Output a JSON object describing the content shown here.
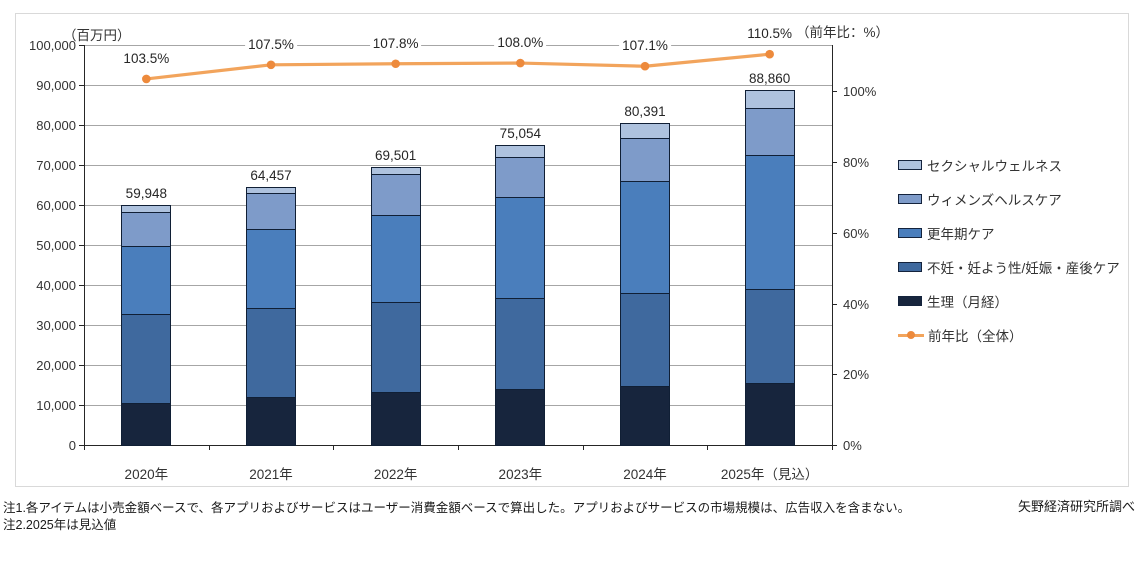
{
  "footer": {
    "note1": "注1.各アイテムは小売金額ベースで、各アプリおよびサービスはユーザー消費金額ベースで算出した。アプリおよびサービスの市場規模は、広告収入を含まない。",
    "note2": "注2.2025年は見込値",
    "source": "矢野経済研究所調べ"
  },
  "legend": {
    "items": [
      {
        "label": "セクシャルウェルネス",
        "type": "box",
        "color": "#AEC2DE"
      },
      {
        "label": "ウィメンズヘルスケア",
        "type": "box",
        "color": "#7E9BC9"
      },
      {
        "label": "更年期ケア",
        "type": "box",
        "color": "#4A7EBC"
      },
      {
        "label": "不妊・妊よう性/妊娠・産後ケア",
        "type": "box",
        "color": "#3F699E"
      },
      {
        "label": "生理（月経）",
        "type": "box",
        "color": "#17253D"
      },
      {
        "label": "前年比（全体）",
        "type": "line",
        "color": "#F2A45C",
        "marker_color": "#ED8A3C"
      }
    ]
  },
  "colors": {
    "gridline": "#A6A6A6",
    "axis": "#262626",
    "frame_border": "#D9D9D9",
    "bar_border": "#101F35",
    "line": "#F2A45C",
    "line_marker": "#ED8A3C"
  },
  "chart_data": {
    "type": "bar",
    "subtype": "stacked-column-with-line",
    "categories": [
      "2020年",
      "2021年",
      "2022年",
      "2023年",
      "2024年",
      "2025年（見込）"
    ],
    "series": [
      {
        "name": "生理（月経）",
        "color": "#17253D",
        "values": [
          10450,
          12100,
          13200,
          13900,
          14800,
          15600
        ]
      },
      {
        "name": "不妊・妊よう性/妊娠・産後ケア",
        "color": "#3F699E",
        "values": [
          22230,
          22200,
          22500,
          22900,
          23300,
          23300
        ]
      },
      {
        "name": "更年期ケア",
        "color": "#4A7EBC",
        "values": [
          17160,
          19600,
          21800,
          25300,
          28000,
          33500
        ]
      },
      {
        "name": "ウィメンズヘルスケア",
        "color": "#7E9BC9",
        "values": [
          8300,
          9100,
          10200,
          9800,
          10600,
          11900
        ]
      },
      {
        "name": "セクシャルウェルネス",
        "color": "#AEC2DE",
        "values": [
          1808,
          1457,
          1801,
          3154,
          3691,
          4560
        ]
      }
    ],
    "totals": [
      59948,
      64457,
      69501,
      75054,
      80391,
      88860
    ],
    "total_labels": [
      "59,948",
      "64,457",
      "69,501",
      "75,054",
      "80,391",
      "88,860"
    ],
    "line_series": {
      "name": "前年比（全体）",
      "values": [
        103.5,
        107.5,
        107.8,
        108.0,
        107.1,
        110.5
      ],
      "labels": [
        "103.5%",
        "107.5%",
        "107.8%",
        "108.0%",
        "107.1%",
        "110.5%"
      ]
    },
    "left_axis": {
      "title": "（百万円）",
      "min": 0,
      "max": 100000,
      "step": 10000
    },
    "right_axis": {
      "title": "（前年比：%）",
      "tick_values": [
        0,
        20,
        40,
        60,
        80,
        100
      ],
      "tick_labels": [
        "0%",
        "20%",
        "40%",
        "60%",
        "80%",
        "100%"
      ],
      "display_max": 113.1
    },
    "grid": true,
    "legend_position": "right"
  }
}
